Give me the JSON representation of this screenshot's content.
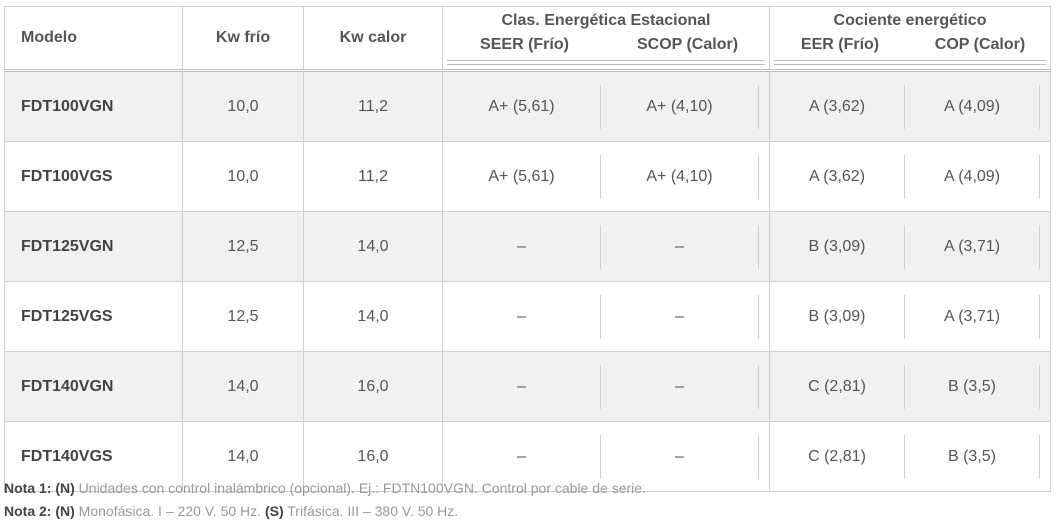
{
  "headers": {
    "modelo": "Modelo",
    "kw_frio": "Kw frío",
    "kw_calor": "Kw calor",
    "seasonal_group": "Clas. Energética Estacional",
    "seer": "SEER (Frío)",
    "scop": "SCOP (Calor)",
    "ratio_group": "Cociente energético",
    "eer": "EER (Frío)",
    "cop": "COP (Calor)"
  },
  "rows": [
    {
      "model": "FDT100VGN",
      "kw_frio": "10,0",
      "kw_calor": "11,2",
      "seer": "A+ (5,61)",
      "scop": "A+ (4,10)",
      "eer": "A (3,62)",
      "cop": "A (4,09)"
    },
    {
      "model": "FDT100VGS",
      "kw_frio": "10,0",
      "kw_calor": "11,2",
      "seer": "A+ (5,61)",
      "scop": "A+ (4,10)",
      "eer": "A (3,62)",
      "cop": "A (4,09)"
    },
    {
      "model": "FDT125VGN",
      "kw_frio": "12,5",
      "kw_calor": "14,0",
      "seer": "–",
      "scop": "–",
      "eer": "B (3,09)",
      "cop": "A (3,71)"
    },
    {
      "model": "FDT125VGS",
      "kw_frio": "12,5",
      "kw_calor": "14,0",
      "seer": "–",
      "scop": "–",
      "eer": "B (3,09)",
      "cop": "A (3,71)"
    },
    {
      "model": "FDT140VGN",
      "kw_frio": "14,0",
      "kw_calor": "16,0",
      "seer": "–",
      "scop": "–",
      "eer": "C (2,81)",
      "cop": "B (3,5)"
    },
    {
      "model": "FDT140VGS",
      "kw_frio": "14,0",
      "kw_calor": "16,0",
      "seer": "–",
      "scop": "–",
      "eer": "C (2,81)",
      "cop": "B (3,5)"
    }
  ],
  "notes": {
    "n1_label": "Nota 1:",
    "n1_code": "(N)",
    "n1_text": "Unidades con control inalámbrico (opcional). Ej.: FDTN100VGN. Control por cable de serie.",
    "n2_label": "Nota 2:",
    "n2_code_n": "(N)",
    "n2_text_n": "Monofásica. I – 220 V. 50 Hz.",
    "n2_code_s": "(S)",
    "n2_text_s": "Trifásica. III – 380 V. 50 Hz."
  }
}
